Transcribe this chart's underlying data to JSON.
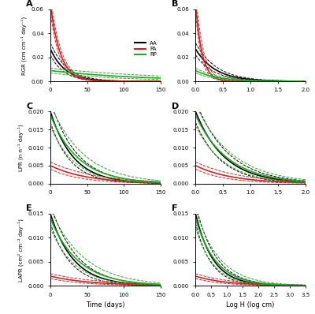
{
  "panels": [
    "A",
    "B",
    "C",
    "D",
    "E",
    "F"
  ],
  "species": [
    "AA",
    "PA",
    "RP"
  ],
  "colors": [
    "black",
    "#cc2222",
    "#22aa22"
  ],
  "legend_labels": [
    "AA",
    "PA",
    "RP"
  ],
  "ylabels": [
    "RGR (cm cm⁻¹ day⁻¹)",
    "",
    "LPR (n n⁻¹ day⁻¹)",
    "",
    "LAPR (cm² cm⁻² day⁻¹)",
    ""
  ],
  "xlabels_bottom": [
    "Time (days)",
    "Log H (log cm)"
  ],
  "time_xlim": [
    0,
    150
  ],
  "logh_xlim_bd": [
    0,
    2.0
  ],
  "logh_xlim_ef": [
    0,
    3.5
  ],
  "time_xticks": [
    0,
    50,
    100,
    150
  ],
  "logh_xticks_bd": [
    0.0,
    0.5,
    1.0,
    1.5,
    2.0
  ],
  "logh_xticks_ef": [
    0.0,
    0.5,
    1.0,
    1.5,
    2.0,
    2.5,
    3.0,
    3.5
  ],
  "panel_A_ylim": [
    0,
    0.06
  ],
  "panel_A_yticks": [
    0.0,
    0.02,
    0.04,
    0.06
  ],
  "panel_B_ylim": [
    0,
    0.06
  ],
  "panel_B_yticks": [
    0.0,
    0.02,
    0.04,
    0.06
  ],
  "panel_C_ylim": [
    0,
    0.02
  ],
  "panel_C_yticks": [
    0.0,
    0.005,
    0.01,
    0.015,
    0.02
  ],
  "panel_D_ylim": [
    0,
    0.02
  ],
  "panel_D_yticks": [
    0.0,
    0.005,
    0.01,
    0.015,
    0.02
  ],
  "panel_E_ylim": [
    0,
    0.015
  ],
  "panel_E_yticks": [
    0.0,
    0.005,
    0.01,
    0.015
  ],
  "panel_F_ylim": [
    0,
    0.015
  ],
  "panel_F_yticks": [
    0.0,
    0.005,
    0.01,
    0.015
  ],
  "panel_A": {
    "AA": {
      "a": 0.027,
      "b": 0.05,
      "a_lo": 0.022,
      "b_lo": 0.055,
      "a_hi": 0.032,
      "b_hi": 0.045
    },
    "PA": {
      "a": 0.065,
      "b": 0.075,
      "a_lo": 0.058,
      "b_lo": 0.08,
      "a_hi": 0.072,
      "b_hi": 0.07
    },
    "RP": {
      "a": 0.009,
      "b": 0.008,
      "a_lo": 0.007,
      "b_lo": 0.01,
      "a_hi": 0.011,
      "b_hi": 0.006
    }
  },
  "panel_B": {
    "AA": {
      "a": 0.027,
      "b": 2.8,
      "a_lo": 0.022,
      "b_lo": 3.0,
      "a_hi": 0.032,
      "b_hi": 2.6
    },
    "PA": {
      "a": 0.065,
      "b": 8.5,
      "a_lo": 0.058,
      "b_lo": 9.5,
      "a_hi": 0.075,
      "b_hi": 7.5
    },
    "RP": {
      "a": 0.009,
      "b": 2.5,
      "a_lo": 0.007,
      "b_lo": 2.8,
      "a_hi": 0.011,
      "b_hi": 2.2
    }
  },
  "panel_C": {
    "AA": {
      "a": 0.02,
      "b": 0.032,
      "a_lo": 0.017,
      "b_lo": 0.036,
      "a_hi": 0.023,
      "b_hi": 0.028
    },
    "PA": {
      "a": 0.005,
      "b": 0.02,
      "a_lo": 0.004,
      "b_lo": 0.024,
      "a_hi": 0.006,
      "b_hi": 0.016
    },
    "RP": {
      "a": 0.019,
      "b": 0.026,
      "a_lo": 0.016,
      "b_lo": 0.03,
      "a_hi": 0.022,
      "b_hi": 0.022
    }
  },
  "panel_D": {
    "AA": {
      "a": 0.02,
      "b": 1.9,
      "a_lo": 0.017,
      "b_lo": 2.1,
      "a_hi": 0.023,
      "b_hi": 1.7
    },
    "PA": {
      "a": 0.005,
      "b": 1.5,
      "a_lo": 0.004,
      "b_lo": 1.8,
      "a_hi": 0.006,
      "b_hi": 1.2
    },
    "RP": {
      "a": 0.019,
      "b": 1.7,
      "a_lo": 0.016,
      "b_lo": 1.9,
      "a_hi": 0.022,
      "b_hi": 1.5
    }
  },
  "panel_E": {
    "AA": {
      "a": 0.015,
      "b": 0.032,
      "a_lo": 0.013,
      "b_lo": 0.036,
      "a_hi": 0.017,
      "b_hi": 0.028
    },
    "PA": {
      "a": 0.002,
      "b": 0.018,
      "a_lo": 0.0015,
      "b_lo": 0.022,
      "a_hi": 0.0025,
      "b_hi": 0.014
    },
    "RP": {
      "a": 0.014,
      "b": 0.026,
      "a_lo": 0.012,
      "b_lo": 0.03,
      "a_hi": 0.016,
      "b_hi": 0.022
    }
  },
  "panel_F": {
    "AA": {
      "a": 0.015,
      "b": 1.8,
      "a_lo": 0.013,
      "b_lo": 2.0,
      "a_hi": 0.017,
      "b_hi": 1.6
    },
    "PA": {
      "a": 0.002,
      "b": 1.0,
      "a_lo": 0.0015,
      "b_lo": 1.2,
      "a_hi": 0.0025,
      "b_hi": 0.8
    },
    "RP": {
      "a": 0.014,
      "b": 1.55,
      "a_lo": 0.012,
      "b_lo": 1.75,
      "a_hi": 0.016,
      "b_hi": 1.35
    }
  }
}
